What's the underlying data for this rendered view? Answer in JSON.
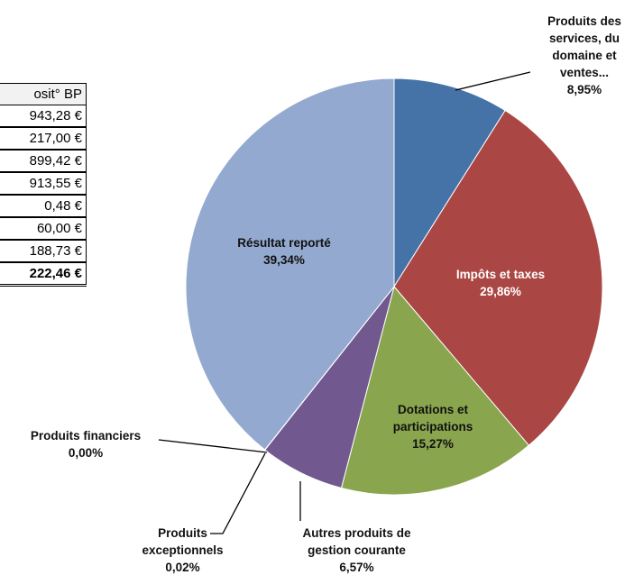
{
  "table": {
    "header": "osit° BP",
    "rows": [
      "943,28 €",
      "217,00 €",
      "899,42 €",
      "913,55 €",
      "0,48 €",
      "60,00 €",
      "188,73 €",
      "222,46 €"
    ]
  },
  "chart_data": {
    "type": "pie",
    "categories": [
      "Produits des services, du domaine et ventes...",
      "Impôts et taxes",
      "Dotations et participations",
      "Autres produits de gestion courante",
      "Produits exceptionnels",
      "Produits financiers",
      "Résultat reporté"
    ],
    "values": [
      8.95,
      29.86,
      15.27,
      6.57,
      0.02,
      0.0,
      39.34
    ],
    "value_labels": [
      "8,95%",
      "29,86%",
      "15,27%",
      "6,57%",
      "0,02%",
      "0,00%",
      "39,34%"
    ],
    "colors": [
      "#4572a7",
      "#aa4643",
      "#89a54e",
      "#71588f",
      "#4198af",
      "#db843d",
      "#93a9cf"
    ]
  }
}
